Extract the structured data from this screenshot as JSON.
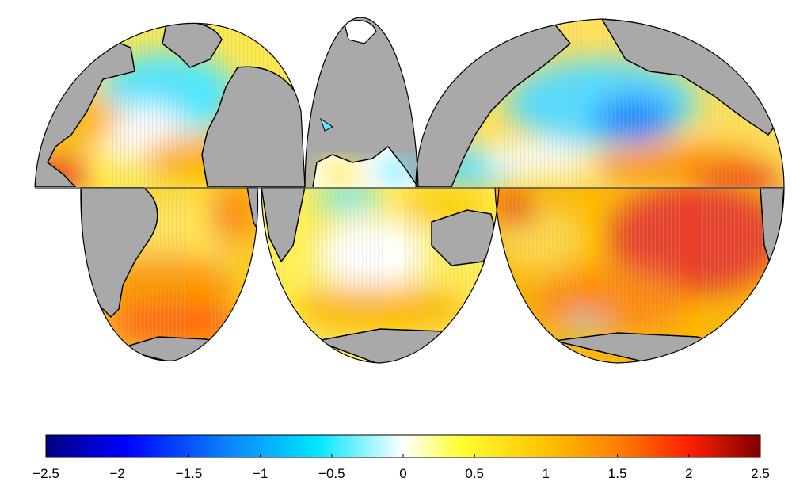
{
  "colorbar": {
    "min": -2.5,
    "max": 2.5,
    "ticks": [
      "-2.5",
      "-2",
      "-1.5",
      "-1",
      "-0.5",
      "0",
      "0.5",
      "1",
      "1.5",
      "2",
      "2.5"
    ],
    "colors": [
      "#00007f",
      "#0000ff",
      "#0a7fff",
      "#00e6ff",
      "#ffffff",
      "#ffff33",
      "#ffc200",
      "#ff8000",
      "#ff2000",
      "#7f0000"
    ]
  },
  "map": {
    "projection": "interrupted-goode",
    "land_color": "#a9a9a9",
    "coast_color": "#000000",
    "stippling": "significance-hatch"
  }
}
